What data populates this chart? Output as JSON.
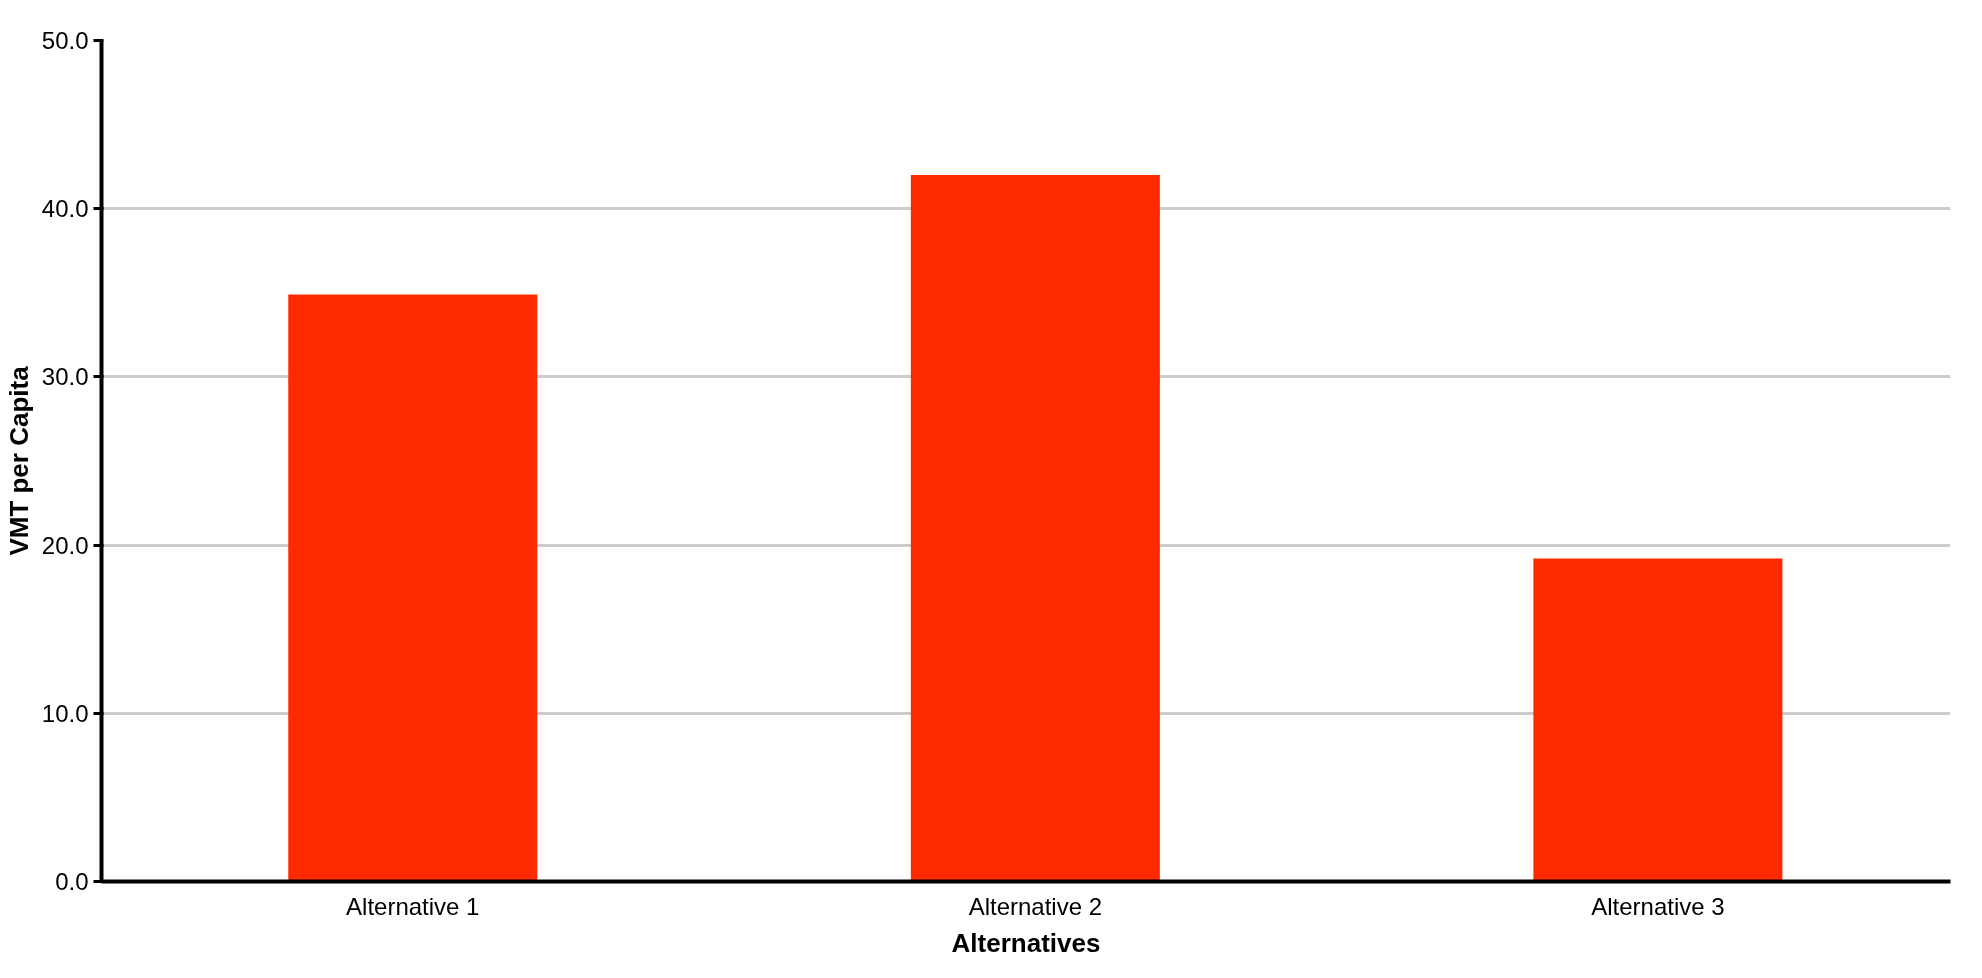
{
  "chart_data": {
    "type": "bar",
    "xlabel": "Alternatives",
    "ylabel": "VMT per Capita",
    "categories": [
      "Alternative 1",
      "Alternative 2",
      "Alternative 3"
    ],
    "values": [
      34.9,
      42.0,
      19.2
    ],
    "color": "#ff2a00",
    "ylim": [
      0,
      50
    ],
    "yticks": [
      {
        "value": 0,
        "label": "0.0"
      },
      {
        "value": 10,
        "label": "10.0"
      },
      {
        "value": 20,
        "label": "20.0"
      },
      {
        "value": 30,
        "label": "30.0"
      },
      {
        "value": 40,
        "label": "40.0"
      },
      {
        "value": 50,
        "label": "50.0"
      }
    ],
    "grid": "y"
  }
}
